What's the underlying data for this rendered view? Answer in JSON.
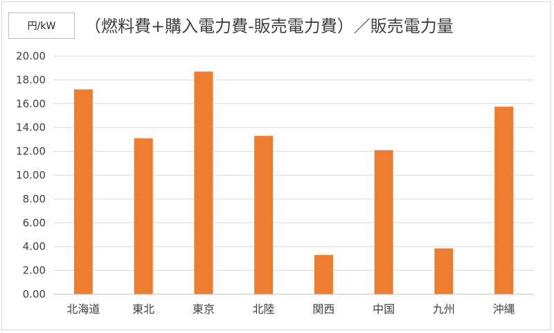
{
  "unit_label": "円/kW",
  "chart_data": {
    "type": "bar",
    "title": "（燃料費+購入電力費-販売電力費）／販売電力量",
    "xlabel": "",
    "ylabel": "円/kW",
    "categories": [
      "北海道",
      "東北",
      "東京",
      "北陸",
      "関西",
      "中国",
      "九州",
      "沖縄"
    ],
    "values": [
      17.2,
      13.1,
      18.7,
      13.3,
      3.3,
      12.1,
      3.85,
      15.75
    ],
    "ylim": [
      0,
      20
    ],
    "yticks": [
      "0.00",
      "2.00",
      "4.00",
      "6.00",
      "8.00",
      "10.00",
      "12.00",
      "14.00",
      "16.00",
      "18.00",
      "20.00"
    ],
    "grid": true,
    "legend": "none",
    "colors": {
      "bar": "#ed7d31",
      "grid": "#d9d9d9",
      "axis": "#bfbfbf",
      "text": "#404040"
    }
  }
}
